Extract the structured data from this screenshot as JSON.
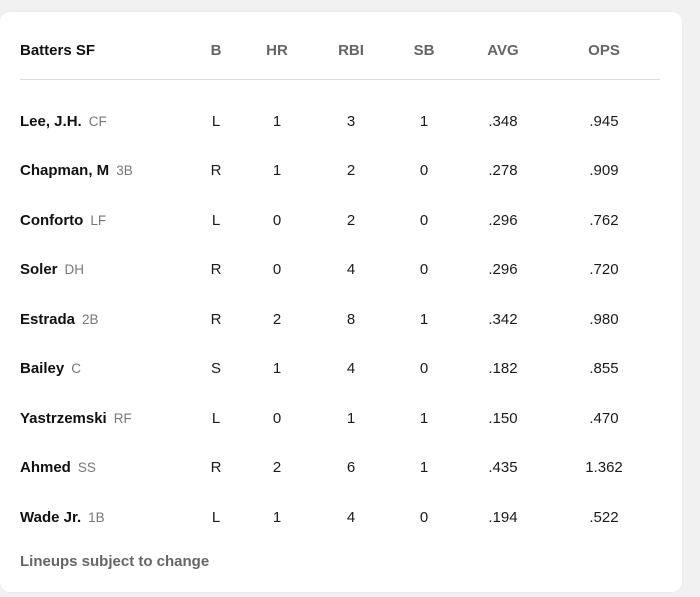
{
  "table": {
    "title": "Batters SF",
    "columns": [
      "B",
      "HR",
      "RBI",
      "SB",
      "AVG",
      "OPS"
    ],
    "rows": [
      {
        "name": "Lee, J.H.",
        "pos": "CF",
        "B": "L",
        "HR": "1",
        "RBI": "3",
        "SB": "1",
        "AVG": ".348",
        "OPS": ".945"
      },
      {
        "name": "Chapman, M",
        "pos": "3B",
        "B": "R",
        "HR": "1",
        "RBI": "2",
        "SB": "0",
        "AVG": ".278",
        "OPS": ".909"
      },
      {
        "name": "Conforto",
        "pos": "LF",
        "B": "L",
        "HR": "0",
        "RBI": "2",
        "SB": "0",
        "AVG": ".296",
        "OPS": ".762"
      },
      {
        "name": "Soler",
        "pos": "DH",
        "B": "R",
        "HR": "0",
        "RBI": "4",
        "SB": "0",
        "AVG": ".296",
        "OPS": ".720"
      },
      {
        "name": "Estrada",
        "pos": "2B",
        "B": "R",
        "HR": "2",
        "RBI": "8",
        "SB": "1",
        "AVG": ".342",
        "OPS": ".980"
      },
      {
        "name": "Bailey",
        "pos": "C",
        "B": "S",
        "HR": "1",
        "RBI": "4",
        "SB": "0",
        "AVG": ".182",
        "OPS": ".855"
      },
      {
        "name": "Yastrzemski",
        "pos": "RF",
        "B": "L",
        "HR": "0",
        "RBI": "1",
        "SB": "1",
        "AVG": ".150",
        "OPS": ".470"
      },
      {
        "name": "Ahmed",
        "pos": "SS",
        "B": "R",
        "HR": "2",
        "RBI": "6",
        "SB": "1",
        "AVG": ".435",
        "OPS": "1.362"
      },
      {
        "name": "Wade Jr.",
        "pos": "1B",
        "B": "L",
        "HR": "1",
        "RBI": "4",
        "SB": "0",
        "AVG": ".194",
        "OPS": ".522"
      }
    ]
  },
  "footer": "Lineups subject to change"
}
